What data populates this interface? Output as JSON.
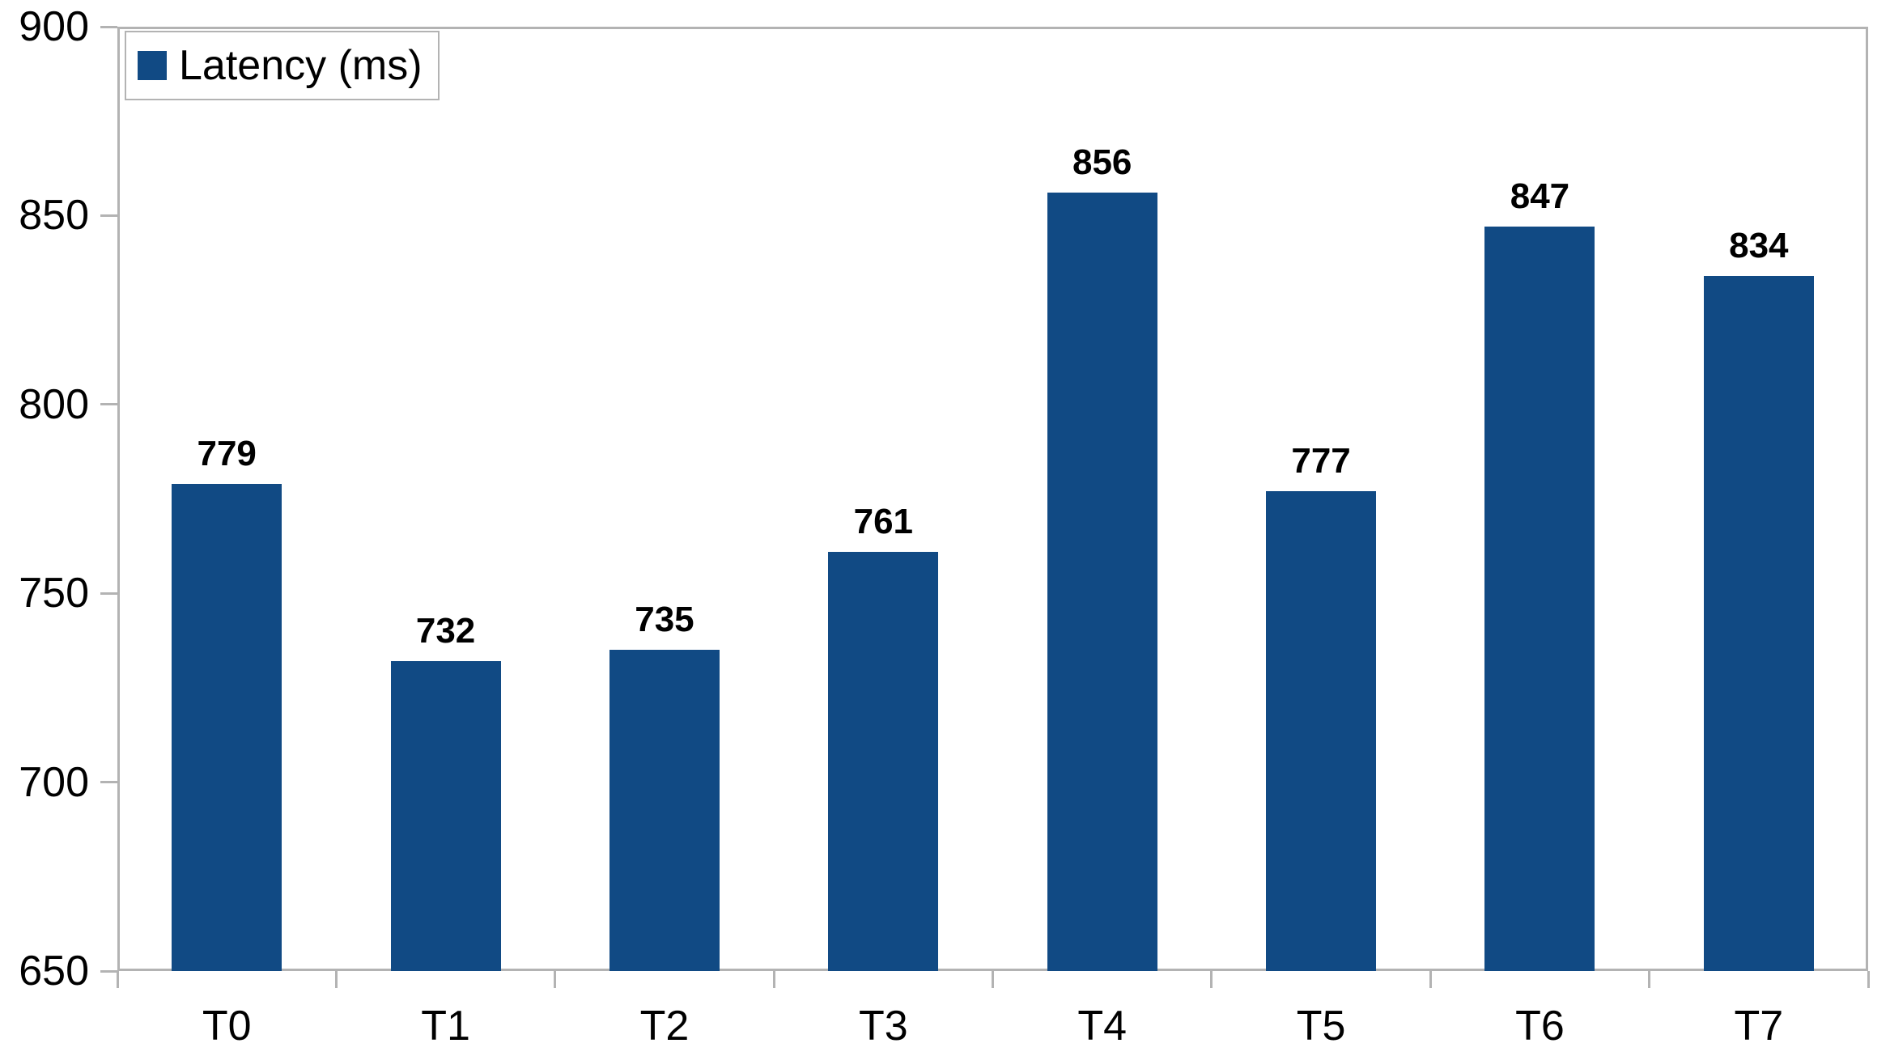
{
  "chart_data": {
    "type": "bar",
    "title": "",
    "xlabel": "",
    "ylabel": "",
    "categories": [
      "T0",
      "T1",
      "T2",
      "T3",
      "T4",
      "T5",
      "T6",
      "T7"
    ],
    "series": [
      {
        "name": "Latency (ms)",
        "values": [
          779,
          732,
          735,
          761,
          856,
          777,
          847,
          834
        ],
        "data_labels": [
          "779",
          "732",
          "735",
          "761",
          "856",
          "777",
          "847",
          "834"
        ]
      }
    ],
    "ylim": [
      650,
      900
    ],
    "ytick_step": 50,
    "ytick_labels": [
      "650",
      "700",
      "750",
      "800",
      "850",
      "900"
    ],
    "grid": false,
    "legend_position": "top-left",
    "bar_value_labels_shown": true,
    "colors": {
      "bar": "#114a84",
      "axis_line": "#b3b3b3",
      "text": "#000000",
      "plot_background": "#ffffff",
      "legend_border": "#b3b3b3"
    }
  },
  "legend": {
    "label": "Latency (ms)"
  }
}
